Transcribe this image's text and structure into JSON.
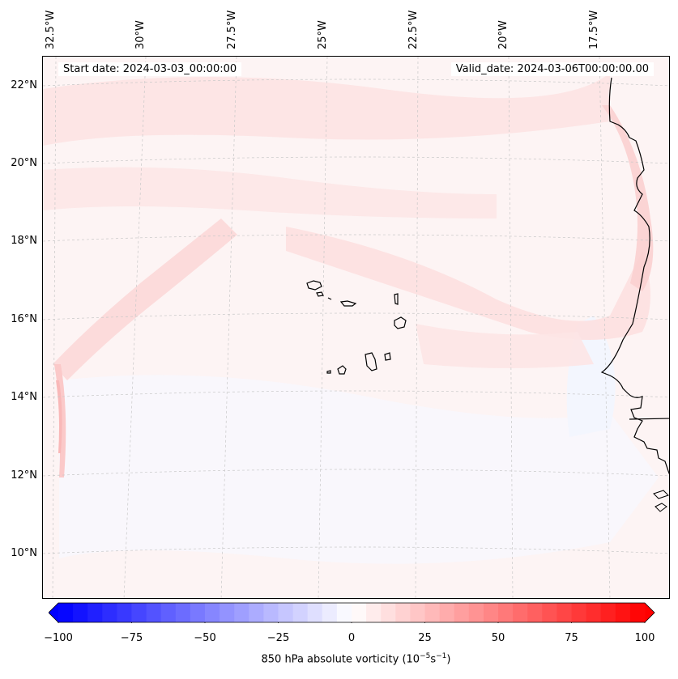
{
  "map": {
    "lon_labels": [
      "32.5°W",
      "30°W",
      "27.5°W",
      "25°W",
      "22.5°W",
      "20°W",
      "17.5°W"
    ],
    "lat_labels": [
      "22°N",
      "20°N",
      "18°N",
      "16°N",
      "14°N",
      "12°N",
      "10°N"
    ],
    "start_date": "Start date: 2024-03-03_00:00:00",
    "valid_date": "Valid_date: 2024-03-06T00:00:00.00",
    "field": "850 hPa absolute vorticity",
    "coastline_color": "#000000"
  },
  "colorbar": {
    "ticks": [
      "−100",
      "−75",
      "−50",
      "−25",
      "0",
      "25",
      "50",
      "75",
      "100"
    ],
    "min": -100,
    "max": 100,
    "low_color": "#0000ff",
    "mid_color": "#ffffff",
    "high_color": "#ff0000",
    "label_text": "850 hPa absolute vorticity (10",
    "label_exp1": "−5",
    "label_mid": "s",
    "label_exp2": "−1",
    "label_end": ")"
  }
}
